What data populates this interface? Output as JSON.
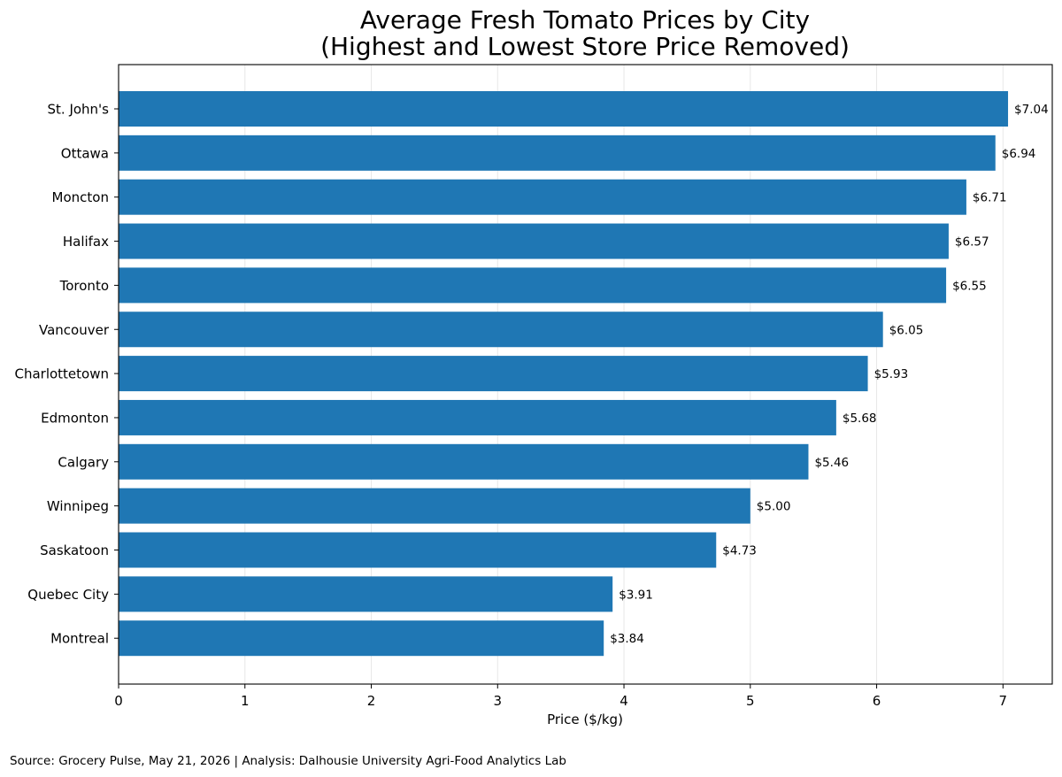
{
  "chart_data": {
    "type": "bar",
    "orientation": "horizontal",
    "title": "Average Fresh Tomato Prices by City",
    "subtitle": "(Highest and Lowest Store Price Removed)",
    "xlabel": "Price ($/kg)",
    "ylabel": "",
    "xlim": [
      0,
      7.39
    ],
    "x_ticks": [
      0,
      1,
      2,
      3,
      4,
      5,
      6,
      7
    ],
    "grid": "vertical",
    "bar_color": "#1f77b4",
    "categories": [
      "St. John's",
      "Ottawa",
      "Moncton",
      "Halifax",
      "Toronto",
      "Vancouver",
      "Charlottetown",
      "Edmonton",
      "Calgary",
      "Winnipeg",
      "Saskatoon",
      "Quebec City",
      "Montreal"
    ],
    "values": [
      7.04,
      6.94,
      6.71,
      6.57,
      6.55,
      6.05,
      5.93,
      5.68,
      5.46,
      5.0,
      4.73,
      3.91,
      3.84
    ],
    "data_labels": [
      "$7.04",
      "$6.94",
      "$6.71",
      "$6.57",
      "$6.55",
      "$6.05",
      "$5.93",
      "$5.68",
      "$5.46",
      "$5.00",
      "$4.73",
      "$3.91",
      "$3.84"
    ]
  },
  "source": "Source: Grocery Pulse, May 21, 2026 | Analysis: Dalhousie University Agri-Food Analytics Lab"
}
